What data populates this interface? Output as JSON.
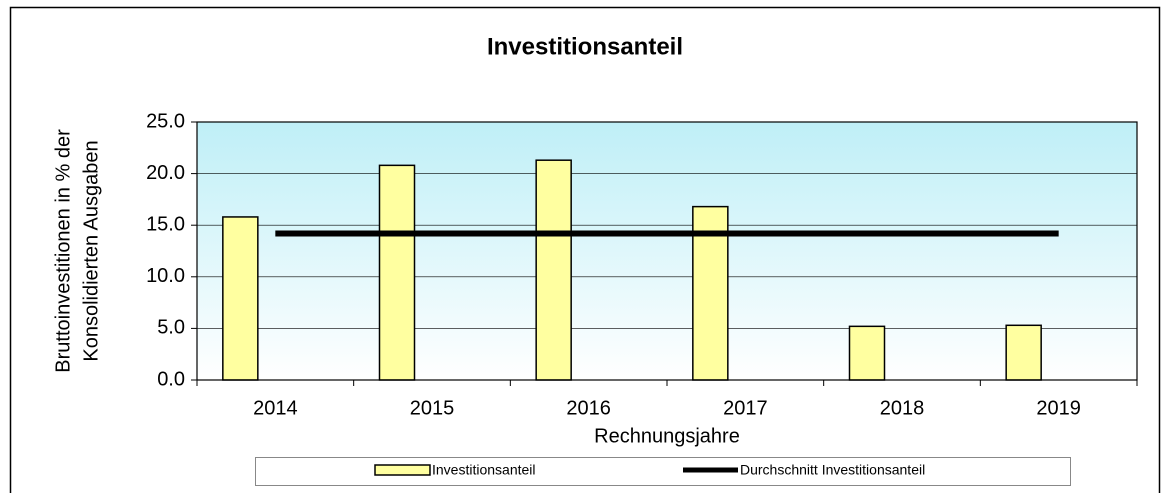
{
  "chart_data": {
    "type": "bar",
    "title": "Investitionsanteil",
    "xlabel": "Rechnungsjahre",
    "ylabel": [
      "Bruttoinvestitionen in % der",
      "Konsolidierten Ausgaben"
    ],
    "categories": [
      "2014",
      "2015",
      "2016",
      "2017",
      "2018",
      "2019"
    ],
    "series": [
      {
        "name": "Investitionsanteil",
        "type": "bar",
        "color": "#ffffa0",
        "values": [
          15.8,
          20.8,
          21.3,
          16.8,
          5.2,
          5.3
        ]
      },
      {
        "name": "Durchschnitt Investitionsanteil",
        "type": "line",
        "color": "#000000",
        "values": [
          14.2,
          14.2,
          14.2,
          14.2,
          14.2,
          14.2
        ]
      }
    ],
    "ylim": [
      0,
      25
    ],
    "yticks": [
      {
        "value": 0,
        "label": "0.0"
      },
      {
        "value": 5,
        "label": "5.0"
      },
      {
        "value": 10,
        "label": "10.0"
      },
      {
        "value": 15,
        "label": "15.0"
      },
      {
        "value": 20,
        "label": "20.0"
      },
      {
        "value": 25,
        "label": "25.0"
      }
    ],
    "grid": true,
    "legend": "bottom"
  }
}
